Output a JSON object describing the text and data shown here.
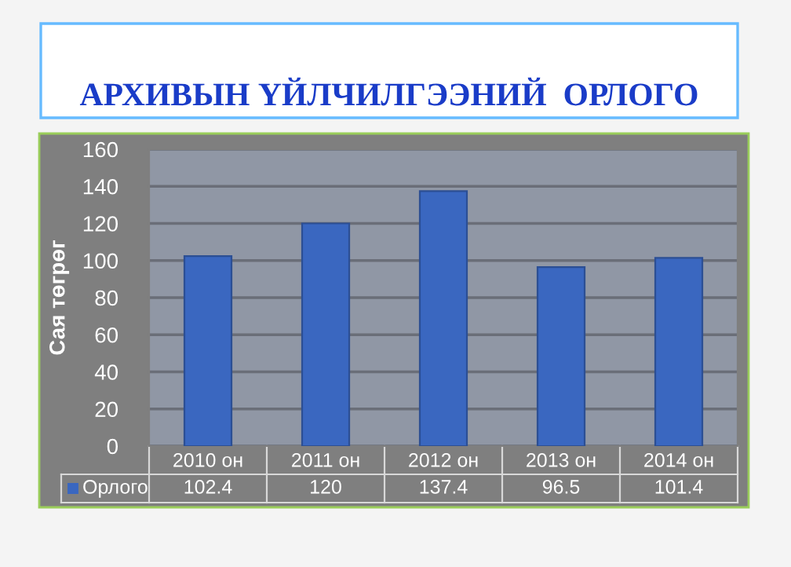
{
  "chart_data": {
    "type": "bar",
    "title": "АРХИВЫН ҮЙЛЧИЛГЭЭНИЙ  ОРЛОГО",
    "ylabel": "Сая төгрөг",
    "categories": [
      "2010 он",
      "2011 он",
      "2012 он",
      "2013 он",
      "2014 он"
    ],
    "series": [
      {
        "name": "Орлого",
        "color": "#3a67c0",
        "values": [
          102.4,
          120,
          137.4,
          96.5,
          101.4
        ]
      }
    ],
    "ylim": [
      0,
      160
    ],
    "yticks": [
      0,
      20,
      40,
      60,
      80,
      100,
      120,
      140,
      160
    ],
    "grid": "y",
    "data_labels": true
  }
}
